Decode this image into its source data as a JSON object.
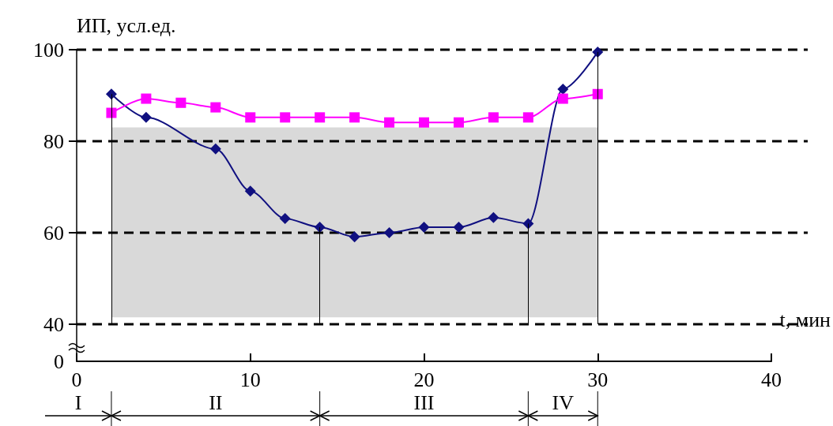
{
  "chart_data": {
    "type": "line",
    "xlabel": "t, мин",
    "ylabel": "ИП, усл.ед.",
    "xlim": [
      0,
      40
    ],
    "xticks": [
      0,
      10,
      20,
      30,
      40
    ],
    "ylim": [
      40,
      100
    ],
    "yticks": [
      40,
      60,
      80,
      100
    ],
    "grid": "y",
    "line_style": "solid",
    "series": [
      {
        "color": "#101080",
        "marker": "diamond",
        "x": [
          2,
          4,
          8,
          10,
          12,
          14,
          16,
          18,
          20,
          22,
          24,
          26,
          28,
          30
        ],
        "values": [
          90.3,
          85.2,
          78.3,
          69.1,
          63.1,
          61.2,
          59.1,
          60,
          61.2,
          61.2,
          63.3,
          62,
          91.4,
          99.5
        ]
      },
      {
        "color": "#ff00ff",
        "marker": "square",
        "x": [
          2,
          4,
          6,
          8,
          10,
          12,
          14,
          16,
          18,
          20,
          22,
          24,
          26,
          28,
          30
        ],
        "values": [
          86.2,
          89.3,
          88.4,
          87.4,
          85.2,
          85.2,
          85.2,
          85.2,
          84.1,
          84.1,
          84.1,
          85.2,
          85.2,
          89.3,
          90.3
        ]
      }
    ],
    "bands": [
      {
        "axis": "y",
        "from": 41.5,
        "to": 83,
        "color": "#d9d9d9"
      }
    ],
    "ref_lines": [
      {
        "axis": "x",
        "value": 2
      },
      {
        "axis": "x",
        "value": 14
      },
      {
        "axis": "x",
        "value": 26
      },
      {
        "axis": "x",
        "value": 30
      }
    ],
    "annotations": [
      "0",
      "I",
      "II",
      "III",
      "IV"
    ]
  }
}
